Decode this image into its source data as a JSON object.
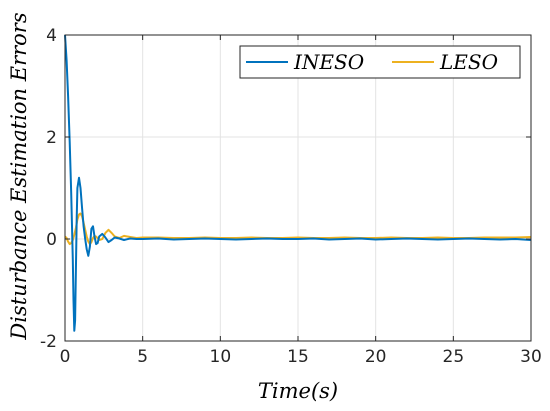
{
  "chart_data": {
    "type": "line",
    "xlabel": "Time(s)",
    "ylabel": "Disturbance Estimation Errors",
    "xlim": [
      0,
      30
    ],
    "ylim": [
      -2,
      4
    ],
    "xticks": [
      0,
      5,
      10,
      15,
      20,
      25,
      30
    ],
    "yticks": [
      -2,
      0,
      2,
      4
    ],
    "x_tick_labels": [
      "0",
      "5",
      "10",
      "15",
      "20",
      "25",
      "30"
    ],
    "y_tick_labels": [
      "-2",
      "0",
      "2",
      "4"
    ],
    "grid": true,
    "legend_position": "top-right",
    "series": [
      {
        "name": "INESO",
        "color": "#0072BD",
        "x": [
          0,
          0.1,
          0.2,
          0.3,
          0.4,
          0.5,
          0.55,
          0.6,
          0.65,
          0.7,
          0.75,
          0.8,
          0.9,
          1.0,
          1.1,
          1.2,
          1.3,
          1.4,
          1.5,
          1.6,
          1.7,
          1.8,
          1.9,
          2.0,
          2.1,
          2.2,
          2.4,
          2.6,
          2.8,
          3.0,
          3.2,
          3.5,
          3.8,
          4.2,
          4.6,
          5.0,
          6,
          7,
          8,
          9,
          10,
          11,
          12,
          13,
          14,
          15,
          16,
          17,
          18,
          19,
          20,
          21,
          22,
          23,
          24,
          25,
          26,
          27,
          28,
          29,
          30
        ],
        "y": [
          4.0,
          3.5,
          2.8,
          1.9,
          0.9,
          -0.4,
          -1.2,
          -1.8,
          -1.6,
          -0.6,
          0.4,
          1.0,
          1.2,
          1.0,
          0.6,
          0.25,
          0.0,
          -0.2,
          -0.33,
          -0.15,
          0.2,
          0.25,
          0.05,
          -0.1,
          -0.08,
          0.05,
          0.1,
          0.03,
          -0.06,
          -0.02,
          0.03,
          0.01,
          -0.02,
          0.01,
          0.0,
          0.0,
          0.01,
          -0.01,
          0.0,
          0.01,
          0.0,
          -0.01,
          0.0,
          0.01,
          0.0,
          0.0,
          0.01,
          -0.01,
          0.0,
          0.01,
          -0.01,
          0.0,
          0.01,
          0.0,
          -0.01,
          0.0,
          0.01,
          0.0,
          -0.01,
          0.0,
          -0.02
        ]
      },
      {
        "name": "LESO",
        "color": "#EDB120",
        "x": [
          0,
          0.1,
          0.2,
          0.3,
          0.4,
          0.5,
          0.6,
          0.7,
          0.8,
          0.9,
          1.0,
          1.1,
          1.2,
          1.3,
          1.4,
          1.5,
          1.6,
          1.7,
          1.8,
          1.9,
          2.0,
          2.2,
          2.4,
          2.6,
          2.8,
          3.0,
          3.2,
          3.5,
          3.8,
          4.2,
          4.6,
          5.0,
          6,
          7,
          8,
          9,
          10,
          11,
          12,
          13,
          14,
          15,
          16,
          17,
          18,
          19,
          20,
          21,
          22,
          23,
          24,
          25,
          26,
          27,
          28,
          29,
          30
        ],
        "y": [
          0.05,
          0.02,
          -0.05,
          -0.1,
          -0.08,
          -0.02,
          0.08,
          0.22,
          0.38,
          0.48,
          0.5,
          0.44,
          0.32,
          0.18,
          0.05,
          -0.05,
          -0.1,
          -0.06,
          0.02,
          0.06,
          0.05,
          -0.02,
          0.0,
          0.12,
          0.18,
          0.12,
          0.05,
          0.02,
          0.06,
          0.04,
          0.02,
          0.03,
          0.03,
          0.02,
          0.02,
          0.03,
          0.02,
          0.02,
          0.03,
          0.02,
          0.02,
          0.03,
          0.02,
          0.02,
          0.03,
          0.02,
          0.02,
          0.03,
          0.02,
          0.02,
          0.03,
          0.02,
          0.02,
          0.03,
          0.03,
          0.03,
          0.04
        ]
      }
    ]
  }
}
